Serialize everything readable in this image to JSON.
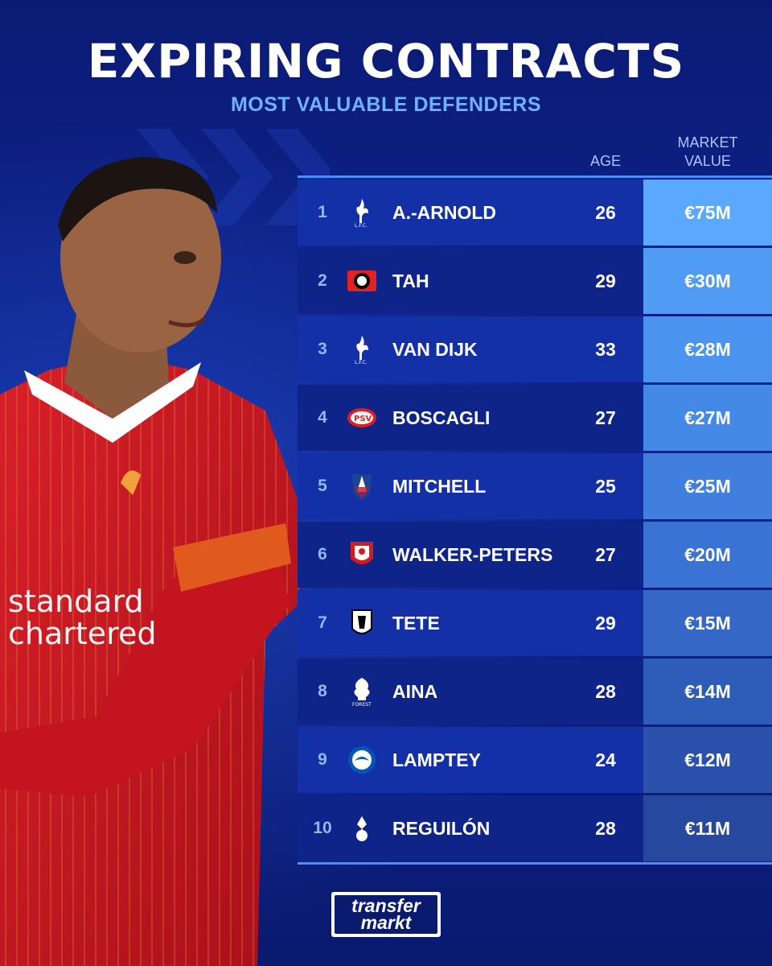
{
  "header": {
    "title": "EXPIRING CONTRACTS",
    "subtitle": "MOST VALUABLE DEFENDERS"
  },
  "columns": {
    "age": "AGE",
    "market_value_line1": "MARKET",
    "market_value_line2": "VALUE"
  },
  "rows": [
    {
      "rank": "1",
      "club": "liverpool-crest",
      "name": "A.-ARNOLD",
      "age": "26",
      "value": "€75M",
      "value_color": "#5aa8ff"
    },
    {
      "rank": "2",
      "club": "leverkusen-crest",
      "name": "TAH",
      "age": "29",
      "value": "€30M",
      "value_color": "#509cf5"
    },
    {
      "rank": "3",
      "club": "liverpool-crest",
      "name": "VAN DIJK",
      "age": "33",
      "value": "€28M",
      "value_color": "#4a93ee"
    },
    {
      "rank": "4",
      "club": "psv-crest",
      "name": "BOSCAGLI",
      "age": "27",
      "value": "€27M",
      "value_color": "#4589e6"
    },
    {
      "rank": "5",
      "club": "crystal-palace-crest",
      "name": "MITCHELL",
      "age": "25",
      "value": "€25M",
      "value_color": "#407fde"
    },
    {
      "rank": "6",
      "club": "southampton-crest",
      "name": "WALKER-PETERS",
      "age": "27",
      "value": "€20M",
      "value_color": "#3a73d3"
    },
    {
      "rank": "7",
      "club": "fulham-crest",
      "name": "TETE",
      "age": "29",
      "value": "€15M",
      "value_color": "#3467c6"
    },
    {
      "rank": "8",
      "club": "nottingham-forest-crest",
      "name": "AINA",
      "age": "28",
      "value": "€14M",
      "value_color": "#2e5cb9"
    },
    {
      "rank": "9",
      "club": "brighton-crest",
      "name": "LAMPTEY",
      "age": "24",
      "value": "€12M",
      "value_color": "#2a52ad"
    },
    {
      "rank": "10",
      "club": "tottenham-crest",
      "name": "REGUILÓN",
      "age": "28",
      "value": "€11M",
      "value_color": "#26489f"
    }
  ],
  "logo": {
    "line1": "transfer",
    "line2": "markt"
  }
}
